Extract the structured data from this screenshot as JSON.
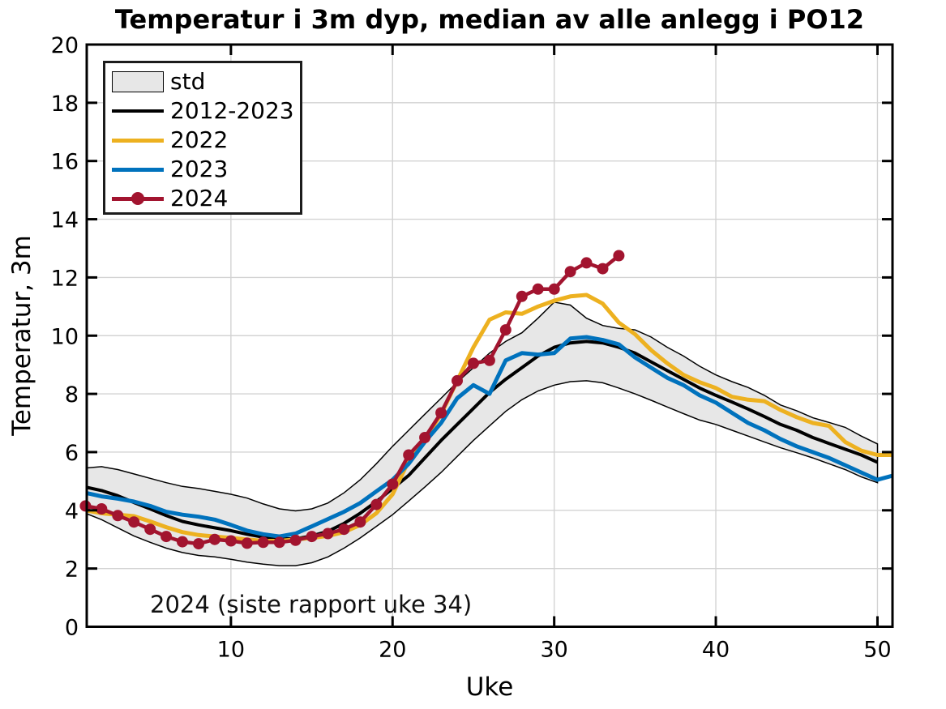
{
  "chart_data": {
    "type": "line",
    "title": "Temperatur i 3m dyp, median av alle anlegg i PO12",
    "xlabel": "Uke",
    "ylabel": "Temperatur, 3m",
    "xlim": [
      1.08,
      50.93
    ],
    "ylim": [
      0,
      20
    ],
    "x_ticks": [
      10,
      20,
      30,
      40,
      50
    ],
    "y_ticks": [
      0,
      2,
      4,
      6,
      8,
      10,
      12,
      14,
      16,
      18,
      20
    ],
    "grid": true,
    "grid_color": "#d3d3d3",
    "axis_color": "#000000",
    "legend_position": "upper-left",
    "annotation": {
      "text": "2024 (siste rapport uke 34)",
      "week": 5.0,
      "value": 1.25
    },
    "band": {
      "label": "std",
      "fill_color": "#e7e7e7",
      "edge_color": "#000000",
      "week_start": 1,
      "upper": [
        5.45,
        5.5,
        5.4,
        5.25,
        5.1,
        4.95,
        4.82,
        4.75,
        4.65,
        4.55,
        4.42,
        4.22,
        4.05,
        3.98,
        4.05,
        4.25,
        4.6,
        5.05,
        5.6,
        6.2,
        6.75,
        7.3,
        7.85,
        8.4,
        8.9,
        9.4,
        9.8,
        10.1,
        10.6,
        11.15,
        11.05,
        10.6,
        10.35,
        10.25,
        10.2,
        9.95,
        9.6,
        9.3,
        8.95,
        8.65,
        8.42,
        8.22,
        7.95,
        7.62,
        7.42,
        7.18,
        7.02,
        6.85,
        6.55,
        6.28
      ],
      "lower": [
        3.9,
        3.68,
        3.4,
        3.12,
        2.9,
        2.7,
        2.55,
        2.45,
        2.4,
        2.32,
        2.22,
        2.15,
        2.1,
        2.1,
        2.2,
        2.4,
        2.7,
        3.05,
        3.45,
        3.85,
        4.32,
        4.8,
        5.3,
        5.85,
        6.4,
        6.9,
        7.4,
        7.8,
        8.1,
        8.3,
        8.42,
        8.45,
        8.38,
        8.2,
        8.0,
        7.78,
        7.55,
        7.32,
        7.1,
        6.95,
        6.75,
        6.55,
        6.35,
        6.15,
        5.98,
        5.8,
        5.6,
        5.4,
        5.15,
        4.95
      ]
    },
    "series": [
      {
        "name": "2012-2023",
        "color": "#000000",
        "line_width": 4,
        "marker": "none",
        "week_start": 1,
        "values": [
          4.8,
          4.68,
          4.5,
          4.27,
          4.05,
          3.82,
          3.62,
          3.5,
          3.4,
          3.3,
          3.18,
          3.08,
          3.02,
          3.02,
          3.12,
          3.28,
          3.55,
          3.9,
          4.3,
          4.75,
          5.2,
          5.8,
          6.4,
          6.95,
          7.5,
          8.05,
          8.5,
          8.9,
          9.3,
          9.6,
          9.75,
          9.8,
          9.75,
          9.6,
          9.4,
          9.1,
          8.8,
          8.5,
          8.2,
          7.95,
          7.72,
          7.48,
          7.22,
          6.95,
          6.75,
          6.5,
          6.3,
          6.1,
          5.9,
          5.65
        ]
      },
      {
        "name": "2022",
        "color": "#edb120",
        "line_width": 5,
        "marker": "none",
        "week_start": 1,
        "values": [
          4.0,
          3.9,
          3.85,
          3.8,
          3.62,
          3.42,
          3.25,
          3.15,
          3.1,
          3.05,
          3.0,
          2.95,
          2.95,
          3.0,
          3.05,
          3.12,
          3.25,
          3.5,
          3.9,
          4.55,
          5.7,
          6.45,
          7.3,
          8.45,
          9.6,
          10.55,
          10.8,
          10.75,
          11.0,
          11.2,
          11.35,
          11.4,
          11.1,
          10.45,
          10.05,
          9.5,
          9.05,
          8.65,
          8.4,
          8.2,
          7.9,
          7.8,
          7.75,
          7.45,
          7.2,
          7.0,
          6.9,
          6.35,
          6.05,
          5.9,
          5.9
        ]
      },
      {
        "name": "2023",
        "color": "#0072bd",
        "line_width": 5,
        "marker": "none",
        "week_start": 1,
        "values": [
          4.6,
          4.48,
          4.4,
          4.3,
          4.15,
          3.95,
          3.85,
          3.78,
          3.68,
          3.5,
          3.3,
          3.18,
          3.1,
          3.2,
          3.45,
          3.7,
          3.95,
          4.25,
          4.65,
          5.05,
          5.6,
          6.35,
          7.0,
          7.85,
          8.3,
          8.0,
          9.15,
          9.4,
          9.35,
          9.4,
          9.9,
          9.95,
          9.85,
          9.7,
          9.25,
          8.9,
          8.55,
          8.3,
          7.95,
          7.7,
          7.35,
          7.0,
          6.75,
          6.45,
          6.2,
          6.0,
          5.8,
          5.55,
          5.3,
          5.05,
          5.2
        ]
      },
      {
        "name": "2024",
        "color": "#a2142f",
        "line_width": 4.5,
        "marker": "circle",
        "marker_size": 7,
        "week_start": 1,
        "values": [
          4.15,
          4.05,
          3.82,
          3.6,
          3.35,
          3.1,
          2.92,
          2.85,
          3.0,
          2.95,
          2.87,
          2.9,
          2.9,
          2.97,
          3.1,
          3.2,
          3.35,
          3.6,
          4.2,
          4.9,
          5.9,
          6.5,
          7.35,
          8.45,
          9.05,
          9.15,
          10.2,
          11.35,
          11.6,
          11.6,
          12.2,
          12.5,
          12.3,
          12.75
        ]
      }
    ]
  }
}
